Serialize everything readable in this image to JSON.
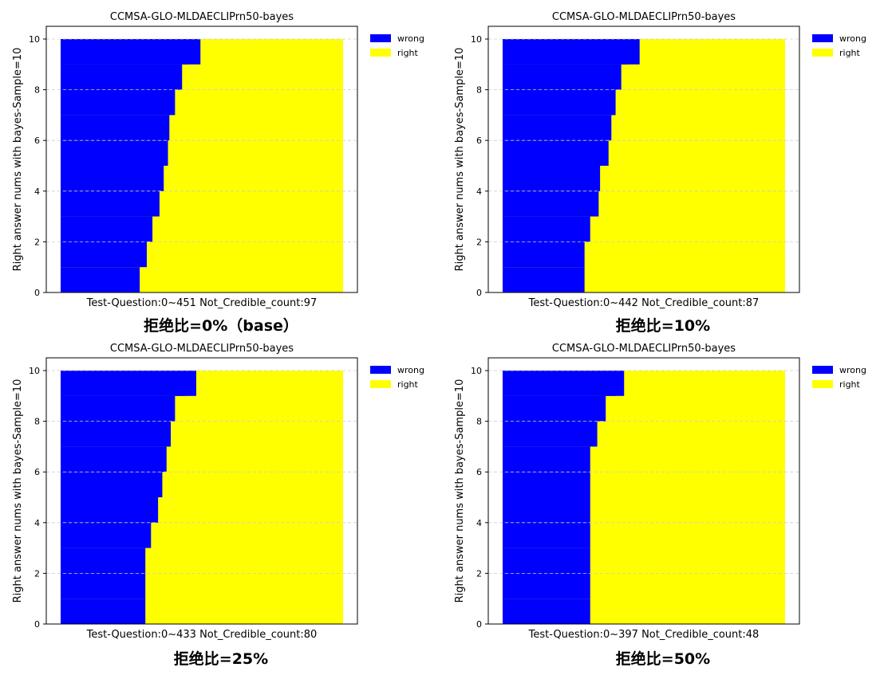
{
  "colors": {
    "wrong": "#0000ff",
    "right": "#ffff00",
    "grid": "#cccccc"
  },
  "chart_data": [
    {
      "type": "area",
      "title": "CCMSA-GLO-MLDAECLIPrn50-bayes",
      "xlabel": "Test-Question:0~451 Not_Credible_count:97",
      "ylabel": "Right answer nums with bayes-Sample=10",
      "caption": "拒绝比=0%（base）",
      "ylim": [
        0,
        10
      ],
      "yticks": [
        0,
        2,
        4,
        6,
        8,
        10
      ],
      "legend": {
        "position": "top-right",
        "entries": [
          "wrong",
          "right"
        ]
      },
      "grid": "y-dashed",
      "x_range": [
        0,
        451
      ],
      "boundary_levels": [
        0,
        1,
        2,
        3,
        4,
        5,
        6,
        7,
        8,
        9,
        10
      ],
      "wrong_extent_fraction": [
        0.28,
        0.305,
        0.325,
        0.35,
        0.365,
        0.38,
        0.385,
        0.405,
        0.43,
        0.455,
        0.495
      ]
    },
    {
      "type": "area",
      "title": "CCMSA-GLO-MLDAECLIPrn50-bayes",
      "xlabel": "Test-Question:0~442 Not_Credible_count:87",
      "ylabel": "Right answer nums with bayes-Sample=10",
      "caption": "拒绝比=10%",
      "ylim": [
        0,
        10
      ],
      "yticks": [
        0,
        2,
        4,
        6,
        8,
        10
      ],
      "legend": {
        "position": "top-right",
        "entries": [
          "wrong",
          "right"
        ]
      },
      "grid": "y-dashed",
      "x_range": [
        0,
        442
      ],
      "boundary_levels": [
        0,
        1,
        2,
        3,
        4,
        5,
        6,
        7,
        8,
        9,
        10
      ],
      "wrong_extent_fraction": [
        0.29,
        0.29,
        0.31,
        0.34,
        0.345,
        0.375,
        0.385,
        0.4,
        0.42,
        0.445,
        0.485
      ]
    },
    {
      "type": "area",
      "title": "CCMSA-GLO-MLDAECLIPrn50-bayes",
      "xlabel": "Test-Question:0~433 Not_Credible_count:80",
      "ylabel": "Right answer nums with bayes-Sample=10",
      "caption": "拒绝比=25%",
      "ylim": [
        0,
        10
      ],
      "yticks": [
        0,
        2,
        4,
        6,
        8,
        10
      ],
      "legend": {
        "position": "top-right",
        "entries": [
          "wrong",
          "right"
        ]
      },
      "grid": "y-dashed",
      "x_range": [
        0,
        433
      ],
      "boundary_levels": [
        0,
        1,
        2,
        3,
        4,
        5,
        6,
        7,
        8,
        9,
        10
      ],
      "wrong_extent_fraction": [
        0.3,
        0.3,
        0.3,
        0.32,
        0.345,
        0.36,
        0.375,
        0.39,
        0.405,
        0.44,
        0.48
      ]
    },
    {
      "type": "area",
      "title": "CCMSA-GLO-MLDAECLIPrn50-bayes",
      "xlabel": "Test-Question:0~397 Not_Credible_count:48",
      "ylabel": "Right answer nums with bayes-Sample=10",
      "caption": "拒绝比=50%",
      "ylim": [
        0,
        10
      ],
      "yticks": [
        0,
        2,
        4,
        6,
        8,
        10
      ],
      "legend": {
        "position": "top-right",
        "entries": [
          "wrong",
          "right"
        ]
      },
      "grid": "y-dashed",
      "x_range": [
        0,
        397
      ],
      "boundary_levels": [
        0,
        1,
        2,
        3,
        4,
        5,
        6,
        7,
        8,
        9,
        10
      ],
      "wrong_extent_fraction": [
        0.31,
        0.31,
        0.31,
        0.31,
        0.31,
        0.31,
        0.31,
        0.335,
        0.365,
        0.4,
        0.43
      ]
    }
  ]
}
